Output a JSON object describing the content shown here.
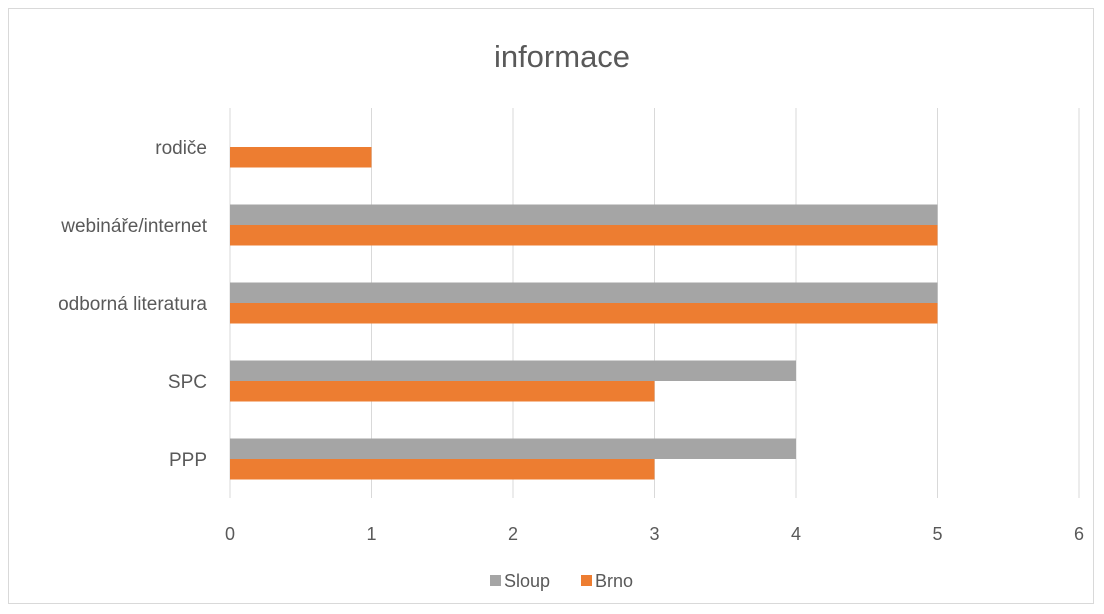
{
  "chart_data": {
    "type": "bar",
    "orientation": "horizontal",
    "title": "informace",
    "categories": [
      "PPP",
      "SPC",
      "odborná literatura",
      "webináře/internet",
      "rodiče"
    ],
    "series": [
      {
        "name": "Sloup",
        "color": "#a5a5a5",
        "values": [
          4,
          4,
          5,
          5,
          0
        ]
      },
      {
        "name": "Brno",
        "color": "#ed7d31",
        "values": [
          3,
          3,
          5,
          5,
          1
        ]
      }
    ],
    "xlim": [
      0,
      6
    ],
    "xticks": [
      "0",
      "1",
      "2",
      "3",
      "4",
      "5",
      "6"
    ],
    "grid": true,
    "legend": "bottom"
  }
}
